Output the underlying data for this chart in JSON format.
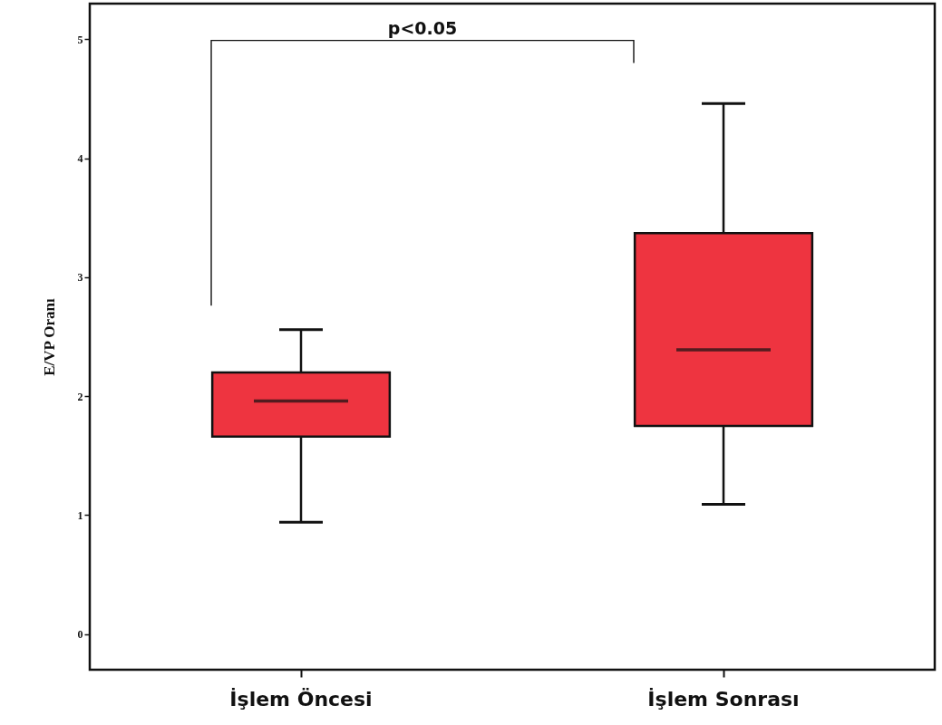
{
  "chart_data": {
    "type": "box",
    "ylabel": "E/VP Oranı",
    "categories": [
      "İşlem Öncesi",
      "İşlem Sonrası"
    ],
    "ylim": [
      -0.3,
      5.3
    ],
    "yticks": [
      0,
      1,
      2,
      3,
      4,
      5
    ],
    "grid": false,
    "color": "#ee3440",
    "boxes": [
      {
        "low": 0.94,
        "q1": 1.66,
        "median": 1.96,
        "q3": 2.2,
        "high": 2.56
      },
      {
        "low": 1.09,
        "q1": 1.75,
        "median": 2.39,
        "q3": 3.37,
        "high": 4.46
      }
    ],
    "annotations": [
      "p<0.05"
    ]
  }
}
